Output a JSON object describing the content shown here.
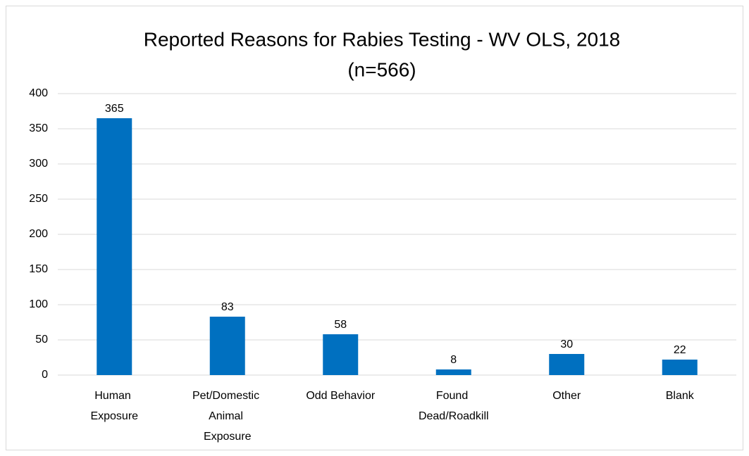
{
  "chart_data": {
    "type": "bar",
    "title": "Reported Reasons for Rabies Testing - WV OLS, 2018",
    "subtitle": "(n=566)",
    "categories": [
      "Human Exposure",
      "Pet/Domestic Animal Exposure",
      "Odd Behavior",
      "Found Dead/Roadkill",
      "Other",
      "Blank"
    ],
    "values": [
      365,
      83,
      58,
      8,
      30,
      22
    ],
    "color": "#0070c0",
    "ylim": [
      0,
      400
    ],
    "yticks": [
      0,
      50,
      100,
      150,
      200,
      250,
      300,
      350,
      400
    ],
    "grid": true
  }
}
